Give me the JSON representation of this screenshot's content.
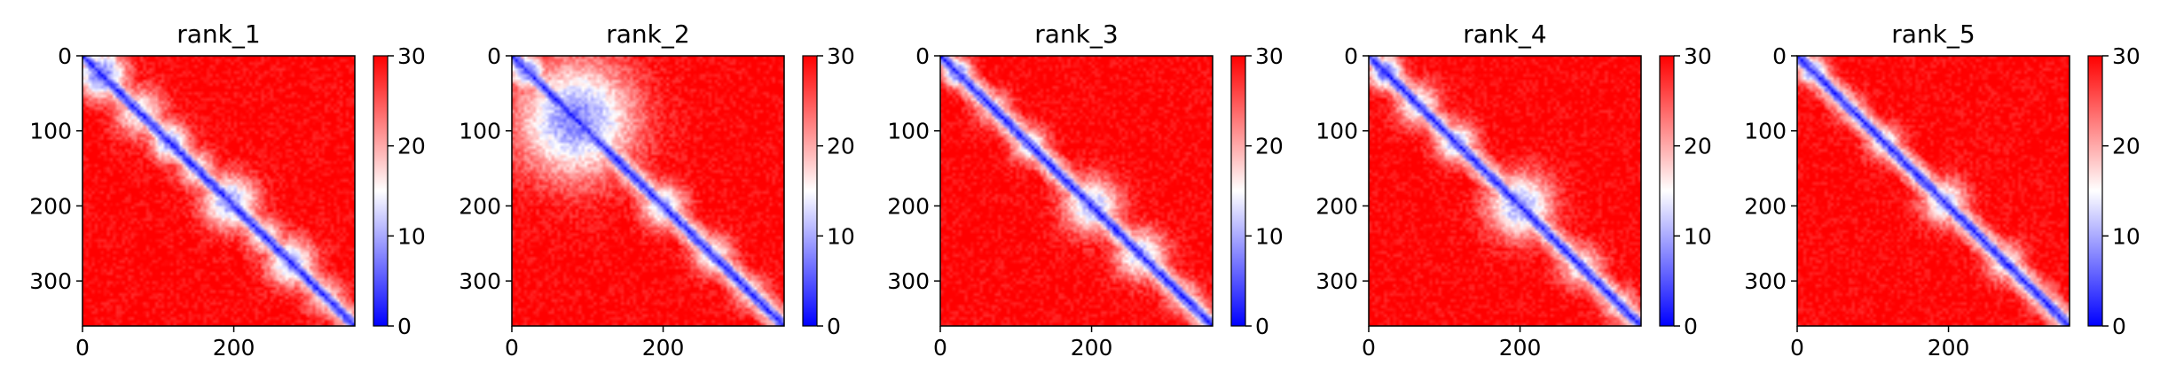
{
  "chart_data": [
    {
      "type": "heatmap",
      "title": "rank_1",
      "xlim": [
        0,
        360
      ],
      "ylim": [
        360,
        0
      ],
      "x_ticks": [
        0,
        200
      ],
      "y_ticks": [
        0,
        100,
        200,
        300
      ],
      "colorbar": {
        "min": 0,
        "max": 30,
        "ticks": [
          0,
          10,
          20,
          30
        ],
        "colors": [
          "#0000ff",
          "#ffffff",
          "#ff0000"
        ]
      },
      "features": [
        {
          "pos": 25,
          "w": 38,
          "s": 0.85
        },
        {
          "pos": 75,
          "w": 40,
          "s": 0.55
        },
        {
          "pos": 115,
          "w": 30,
          "s": 0.75
        },
        {
          "pos": 150,
          "w": 30,
          "s": 0.55
        },
        {
          "pos": 195,
          "w": 42,
          "s": 0.75
        },
        {
          "pos": 240,
          "w": 30,
          "s": 0.55
        },
        {
          "pos": 275,
          "w": 38,
          "s": 0.7
        },
        {
          "pos": 320,
          "w": 30,
          "s": 0.5
        }
      ]
    },
    {
      "type": "heatmap",
      "title": "rank_2",
      "xlim": [
        0,
        360
      ],
      "ylim": [
        360,
        0
      ],
      "x_ticks": [
        0,
        200
      ],
      "y_ticks": [
        0,
        100,
        200,
        300
      ],
      "colorbar": {
        "min": 0,
        "max": 30,
        "ticks": [
          0,
          10,
          20,
          30
        ],
        "colors": [
          "#0000ff",
          "#ffffff",
          "#ff0000"
        ]
      },
      "features": [
        {
          "pos": 20,
          "w": 28,
          "s": 0.85
        },
        {
          "pos": 85,
          "w": 90,
          "s": 0.8
        },
        {
          "pos": 200,
          "w": 34,
          "s": 0.7
        },
        {
          "pos": 265,
          "w": 32,
          "s": 0.6
        },
        {
          "pos": 315,
          "w": 28,
          "s": 0.5
        }
      ]
    },
    {
      "type": "heatmap",
      "title": "rank_3",
      "xlim": [
        0,
        360
      ],
      "ylim": [
        360,
        0
      ],
      "x_ticks": [
        0,
        200
      ],
      "y_ticks": [
        0,
        100,
        200,
        300
      ],
      "colorbar": {
        "min": 0,
        "max": 30,
        "ticks": [
          0,
          10,
          20,
          30
        ],
        "colors": [
          "#0000ff",
          "#ffffff",
          "#ff0000"
        ]
      },
      "features": [
        {
          "pos": 22,
          "w": 22,
          "s": 0.9
        },
        {
          "pos": 70,
          "w": 28,
          "s": 0.5
        },
        {
          "pos": 118,
          "w": 28,
          "s": 0.65
        },
        {
          "pos": 200,
          "w": 44,
          "s": 0.7
        },
        {
          "pos": 265,
          "w": 40,
          "s": 0.65
        },
        {
          "pos": 320,
          "w": 28,
          "s": 0.5
        }
      ]
    },
    {
      "type": "heatmap",
      "title": "rank_4",
      "xlim": [
        0,
        360
      ],
      "ylim": [
        360,
        0
      ],
      "x_ticks": [
        0,
        200
      ],
      "y_ticks": [
        0,
        100,
        200,
        300
      ],
      "colorbar": {
        "min": 0,
        "max": 30,
        "ticks": [
          0,
          10,
          20,
          30
        ],
        "colors": [
          "#0000ff",
          "#ffffff",
          "#ff0000"
        ]
      },
      "features": [
        {
          "pos": 22,
          "w": 26,
          "s": 0.9
        },
        {
          "pos": 65,
          "w": 34,
          "s": 0.6
        },
        {
          "pos": 115,
          "w": 32,
          "s": 0.7
        },
        {
          "pos": 200,
          "w": 50,
          "s": 0.75
        },
        {
          "pos": 280,
          "w": 34,
          "s": 0.55
        },
        {
          "pos": 330,
          "w": 28,
          "s": 0.5
        }
      ]
    },
    {
      "type": "heatmap",
      "title": "rank_5",
      "xlim": [
        0,
        360
      ],
      "ylim": [
        360,
        0
      ],
      "x_ticks": [
        0,
        200
      ],
      "y_ticks": [
        0,
        100,
        200,
        300
      ],
      "colorbar": {
        "min": 0,
        "max": 30,
        "ticks": [
          0,
          10,
          20,
          30
        ],
        "colors": [
          "#0000ff",
          "#ffffff",
          "#ff0000"
        ]
      },
      "features": [
        {
          "pos": 20,
          "w": 22,
          "s": 0.85
        },
        {
          "pos": 70,
          "w": 26,
          "s": 0.45
        },
        {
          "pos": 115,
          "w": 28,
          "s": 0.6
        },
        {
          "pos": 195,
          "w": 36,
          "s": 0.65
        },
        {
          "pos": 275,
          "w": 32,
          "s": 0.55
        },
        {
          "pos": 320,
          "w": 26,
          "s": 0.45
        }
      ]
    }
  ]
}
